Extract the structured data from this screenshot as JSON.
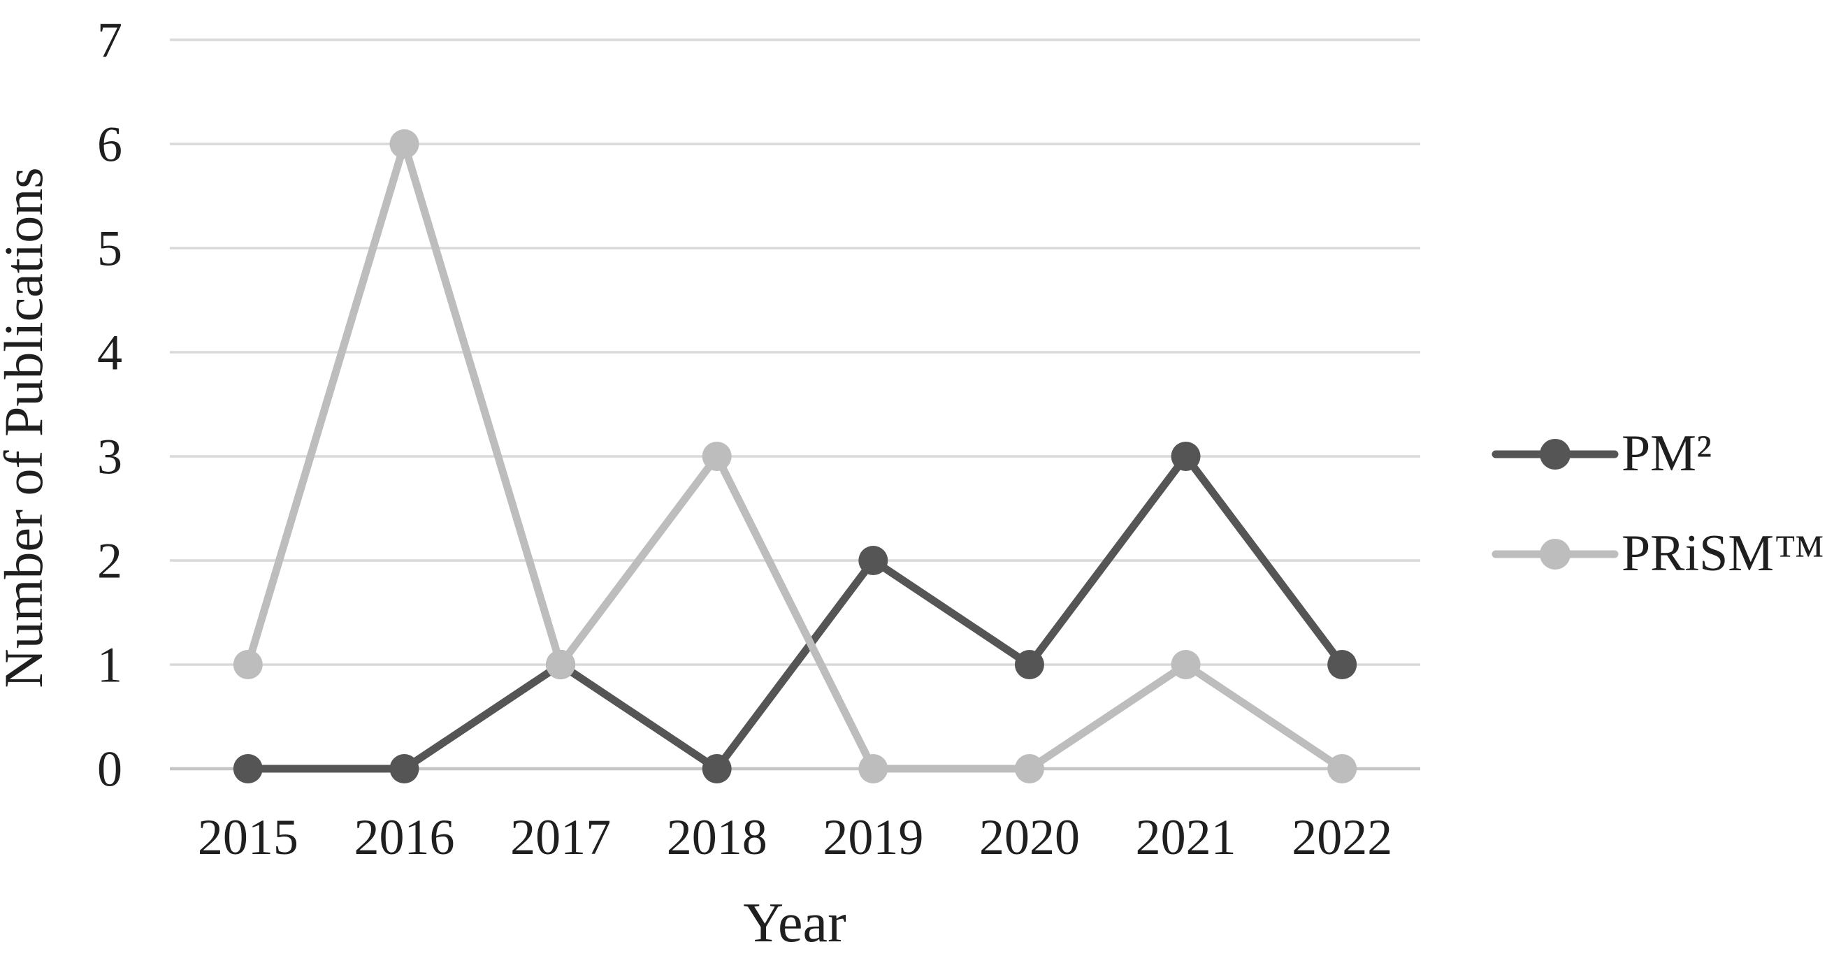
{
  "figure": {
    "background_color": "#ffffff",
    "text_color": "#1f1f1f"
  },
  "chart_data": {
    "type": "line",
    "title": "",
    "xlabel": "Year",
    "ylabel": "Number of Publications",
    "categories": [
      "2015",
      "2016",
      "2017",
      "2018",
      "2019",
      "2020",
      "2021",
      "2022"
    ],
    "series": [
      {
        "name": "PM²",
        "values": [
          0,
          0,
          1,
          0,
          2,
          1,
          3,
          1
        ],
        "color": "#555555"
      },
      {
        "name": "PRiSM™",
        "values": [
          1,
          6,
          1,
          3,
          0,
          0,
          1,
          0
        ],
        "color": "#BDBDBD"
      }
    ],
    "ylim": [
      0,
      7
    ],
    "yticks": [
      0,
      1,
      2,
      3,
      4,
      5,
      6,
      7
    ],
    "grid": "horizontal",
    "gridline_color": "#D9D9D9",
    "zero_line_color": "#C6C6C6",
    "marker": "circle",
    "legend_position": "right"
  }
}
